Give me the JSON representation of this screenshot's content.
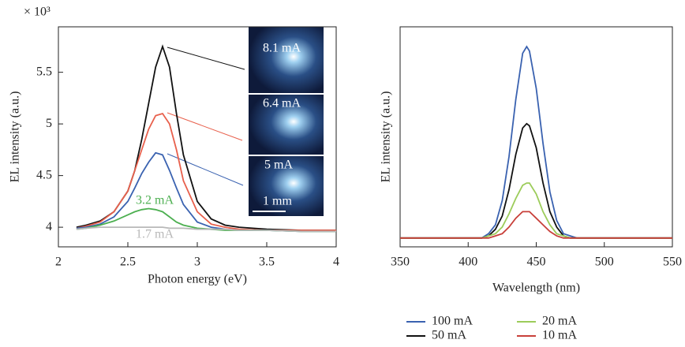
{
  "chart_data": [
    {
      "type": "line",
      "multiplier": "× 10³",
      "xlabel": "Photon energy (eV)",
      "ylabel": "EL intensity (a.u.)",
      "scale_bar": "1 mm",
      "xlim": [
        2,
        4
      ],
      "ylim": [
        3.81,
        5.94
      ],
      "xticks": [
        2,
        2.5,
        3,
        3.5,
        4
      ],
      "yticks": [
        4,
        4.5,
        5,
        5.5
      ],
      "x": [
        2.13,
        2.2,
        2.3,
        2.4,
        2.5,
        2.55,
        2.6,
        2.65,
        2.7,
        2.75,
        2.8,
        2.85,
        2.9,
        3.0,
        3.1,
        3.2,
        3.3,
        3.5,
        3.75,
        4.0
      ],
      "series": [
        {
          "name": "8.1 mA",
          "color": "#111111",
          "values": [
            4.0,
            4.02,
            4.06,
            4.15,
            4.35,
            4.55,
            4.85,
            5.2,
            5.55,
            5.75,
            5.55,
            5.1,
            4.7,
            4.25,
            4.08,
            4.02,
            4.0,
            3.98,
            3.97,
            3.97
          ]
        },
        {
          "name": "6.4 mA",
          "color": "#e8604c",
          "values": [
            3.99,
            4.01,
            4.05,
            4.15,
            4.35,
            4.55,
            4.75,
            4.95,
            5.08,
            5.1,
            5.0,
            4.75,
            4.45,
            4.15,
            4.03,
            4.0,
            3.98,
            3.97,
            3.97,
            3.97
          ]
        },
        {
          "name": "5 mA",
          "color": "#3a62b0",
          "values": [
            3.99,
            4.0,
            4.03,
            4.1,
            4.25,
            4.38,
            4.52,
            4.63,
            4.72,
            4.7,
            4.55,
            4.38,
            4.22,
            4.05,
            4.0,
            3.98,
            3.97,
            3.97,
            3.96,
            3.96
          ]
        },
        {
          "name": "3.2 mA",
          "color": "#4caf50",
          "values": [
            3.98,
            3.99,
            4.02,
            4.06,
            4.12,
            4.15,
            4.17,
            4.18,
            4.17,
            4.15,
            4.1,
            4.05,
            4.02,
            3.99,
            3.98,
            3.97,
            3.97,
            3.97,
            3.96,
            3.96
          ]
        },
        {
          "name": "1.7 mA",
          "color": "#b8b8b8",
          "values": [
            3.98,
            3.99,
            4.0,
            4.0,
            4.0,
            4.0,
            4.0,
            4.0,
            4.0,
            4.0,
            3.99,
            3.99,
            3.99,
            3.98,
            3.98,
            3.98,
            3.97,
            3.97,
            3.96,
            3.96
          ]
        }
      ]
    },
    {
      "type": "line",
      "xlabel": "Wavelength (nm)",
      "ylabel": "EL intensity (a.u.)",
      "legend": "bottom",
      "xlim": [
        350,
        550
      ],
      "ylim": [
        0,
        1
      ],
      "xticks": [
        350,
        400,
        450,
        500,
        550
      ],
      "x": [
        350,
        370,
        390,
        400,
        410,
        415,
        420,
        425,
        430,
        435,
        440,
        443,
        445,
        450,
        455,
        460,
        465,
        470,
        475,
        480,
        490,
        500,
        520,
        550
      ],
      "series": [
        {
          "name": "100 mA",
          "color": "#3a62b0",
          "values": [
            0.04,
            0.04,
            0.04,
            0.04,
            0.04,
            0.06,
            0.1,
            0.21,
            0.41,
            0.67,
            0.88,
            0.91,
            0.89,
            0.72,
            0.47,
            0.25,
            0.12,
            0.06,
            0.05,
            0.04,
            0.04,
            0.04,
            0.04,
            0.04
          ]
        },
        {
          "name": "50 mA",
          "color": "#111111",
          "values": [
            0.04,
            0.04,
            0.04,
            0.04,
            0.04,
            0.05,
            0.08,
            0.14,
            0.26,
            0.42,
            0.54,
            0.56,
            0.55,
            0.45,
            0.29,
            0.16,
            0.09,
            0.05,
            0.04,
            0.04,
            0.04,
            0.04,
            0.04,
            0.04
          ]
        },
        {
          "name": "20 mA",
          "color": "#9ccc5a",
          "values": [
            0.04,
            0.04,
            0.04,
            0.04,
            0.04,
            0.05,
            0.06,
            0.09,
            0.15,
            0.22,
            0.28,
            0.29,
            0.29,
            0.24,
            0.16,
            0.1,
            0.06,
            0.05,
            0.04,
            0.04,
            0.04,
            0.04,
            0.04,
            0.04
          ]
        },
        {
          "name": "10 mA",
          "color": "#c8403a",
          "values": [
            0.04,
            0.04,
            0.04,
            0.04,
            0.04,
            0.04,
            0.05,
            0.06,
            0.09,
            0.13,
            0.16,
            0.16,
            0.16,
            0.13,
            0.1,
            0.07,
            0.05,
            0.04,
            0.04,
            0.04,
            0.04,
            0.04,
            0.04,
            0.04
          ]
        }
      ]
    }
  ]
}
